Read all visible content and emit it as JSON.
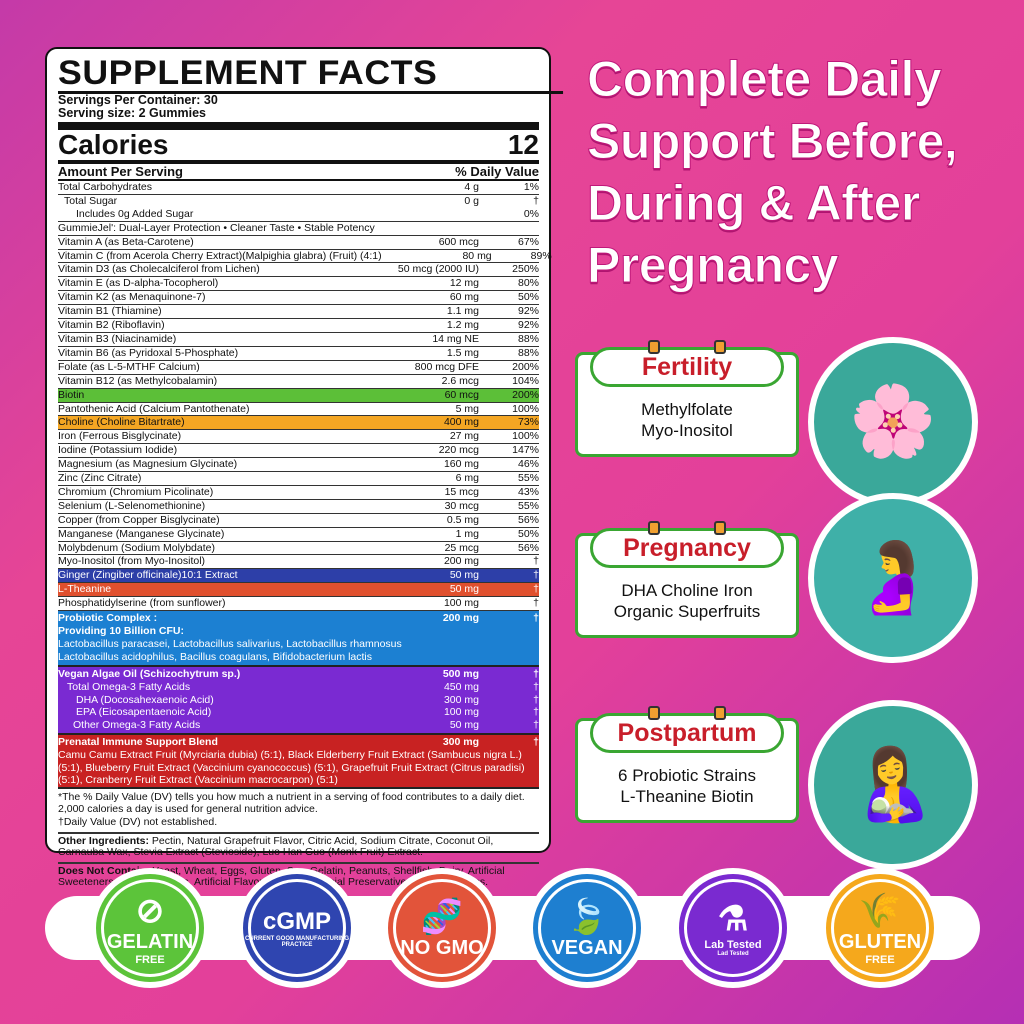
{
  "panel": {
    "title": "SUPPLEMENT FACTS",
    "servings_per_container": "Servings Per Container: 30",
    "serving_size": "Serving size: 2 Gummies",
    "calories_label": "Calories",
    "calories_value": "12",
    "amount_per_serving": "Amount Per Serving",
    "daily_value_header": "% Daily Value",
    "rows": [
      {
        "n": "Total Carbohydrates",
        "a": "4 g",
        "d": "1%"
      },
      {
        "n": "  Total Sugar",
        "a": "0 g",
        "d": "†",
        "nob": true
      },
      {
        "n": "      Includes 0g Added Sugar",
        "a": "",
        "d": "0%"
      },
      {
        "n": "GummieJel': Dual-Layer Protection • Cleaner Taste • Stable Potency",
        "a": "",
        "d": ""
      },
      {
        "n": "Vitamin A (as Beta-Carotene)",
        "a": "600 mcg",
        "d": "67%"
      },
      {
        "n": "Vitamin C (from Acerola Cherry Extract)(Malpighia glabra) (Fruit) (4:1)",
        "a": "80 mg",
        "d": "89%"
      },
      {
        "n": "Vitamin D3 (as Cholecalciferol from Lichen)",
        "a": "50 mcg (2000 IU)",
        "d": "250%"
      },
      {
        "n": "Vitamin E (as D-alpha-Tocopherol)",
        "a": "12 mg",
        "d": "80%"
      },
      {
        "n": "Vitamin K2 (as Menaquinone-7)",
        "a": "60 mg",
        "d": "50%"
      },
      {
        "n": "Vitamin B1 (Thiamine)",
        "a": "1.1 mg",
        "d": "92%"
      },
      {
        "n": "Vitamin B2 (Riboflavin)",
        "a": "1.2 mg",
        "d": "92%"
      },
      {
        "n": "Vitamin B3 (Niacinamide)",
        "a": "14 mg NE",
        "d": "88%"
      },
      {
        "n": "Vitamin B6 (as Pyridoxal 5-Phosphate)",
        "a": "1.5 mg",
        "d": "88%"
      },
      {
        "n": "Folate (as L-5-MTHF Calcium)",
        "a": "800 mcg DFE",
        "d": "200%"
      },
      {
        "n": "Vitamin B12 (as Methylcobalamin)",
        "a": "2.6 mcg",
        "d": "104%"
      },
      {
        "n": "Biotin",
        "a": "60 mcg",
        "d": "200%",
        "bg": "#5cbf38"
      },
      {
        "n": "Pantothenic Acid (Calcium Pantothenate)",
        "a": "5 mg",
        "d": "100%"
      },
      {
        "n": "Choline (Choline Bitartrate)",
        "a": "400 mg",
        "d": "73%",
        "bg": "#f4a623"
      },
      {
        "n": "Iron (Ferrous Bisglycinate)",
        "a": "27 mg",
        "d": "100%"
      },
      {
        "n": "Iodine (Potassium Iodide)",
        "a": "220 mcg",
        "d": "147%"
      },
      {
        "n": "Magnesium (as Magnesium Glycinate)",
        "a": "160 mg",
        "d": "46%"
      },
      {
        "n": "Zinc (Zinc Citrate)",
        "a": "6 mg",
        "d": "55%"
      },
      {
        "n": "Chromium (Chromium Picolinate)",
        "a": "15 mcg",
        "d": "43%"
      },
      {
        "n": "Selenium (L-Selenomethionine)",
        "a": "30 mcg",
        "d": "55%"
      },
      {
        "n": "Copper (from Copper Bisglycinate)",
        "a": "0.5 mg",
        "d": "56%"
      },
      {
        "n": "Manganese (Manganese Glycinate)",
        "a": "1 mg",
        "d": "50%"
      },
      {
        "n": "Molybdenum (Sodium Molybdate)",
        "a": "25 mcg",
        "d": "56%"
      },
      {
        "n": "Myo-Inositol (from Myo-Inositol)",
        "a": "200 mg",
        "d": "†"
      },
      {
        "n": "Ginger (Zingiber officinale)10:1 Extract",
        "a": "50 mg",
        "d": "†",
        "bg": "#2d3fa8",
        "fg": "#fff"
      },
      {
        "n": "L-Theanine",
        "a": "50 mg",
        "d": "†",
        "bg": "#e0502e",
        "fg": "#fff"
      },
      {
        "n": "Phosphatidylserine (from sunflower)",
        "a": "100 mg",
        "d": "†"
      }
    ],
    "blocks": [
      {
        "bg": "#1c80d2",
        "rows": [
          {
            "n": "Probiotic Complex :",
            "a": "200 mg",
            "d": "†",
            "b": true
          },
          {
            "n": "Providing 10 Billion CFU:",
            "a": "",
            "d": "",
            "b": true
          },
          {
            "n": "Lactobacillus paracasei, Lactobacillus salivarius, Lactobacillus rhamnosus",
            "a": "",
            "d": ""
          },
          {
            "n": "Lactobacillus acidophilus, Bacillus coagulans, Bifidobacterium lactis",
            "a": "",
            "d": ""
          }
        ]
      },
      {
        "bg": "#7a2ad2",
        "rows": [
          {
            "n": "Vegan Algae Oil (Schizochytrum sp.)",
            "a": "500 mg",
            "d": "†",
            "b": true
          },
          {
            "n": "   Total Omega-3 Fatty Acids",
            "a": "450 mg",
            "d": "†"
          },
          {
            "n": "      DHA (Docosahexaenoic Acid)",
            "a": "300 mg",
            "d": "†"
          },
          {
            "n": "      EPA (Eicosapentaenoic Acid)",
            "a": "100 mg",
            "d": "†"
          },
          {
            "n": "     Other Omega-3 Fatty Acids",
            "a": "50 mg",
            "d": "†"
          }
        ]
      },
      {
        "bg": "#c82222",
        "rows": [
          {
            "n": "Prenatal Immune Support Blend",
            "a": "300 mg",
            "d": "†",
            "b": true
          }
        ],
        "text": "Camu Camu Extract Fruit (Myrciaria dubia) (5:1), Black Elderberry Fruit Extract (Sambucus nigra L.) (5:1), Blueberry Fruit Extract (Vaccinium cyanococcus) (5:1), Grapefruit Fruit Extract (Citrus paradisi) (5:1), Cranberry Fruit Extract (Vaccinium macrocarpon) (5:1)"
      }
    ],
    "footnote_dv": "*The % Daily Value (DV) tells you how much a nutrient in a serving of food contributes to a daily diet. 2,000 calories a day is used for general nutrition advice.",
    "footnote_dagger": "†Daily Value (DV) not established.",
    "other_label": "Other Ingredients:",
    "other_text": " Pectin, Natural Grapefruit Flavor, Citric Acid, Sodium Citrate, Coconut Oil, Carnauba Wax, Stevia Extract (Stevioside), Luo Han Guo (Monk Fruit) Extract.",
    "dnc_label": "Does Not Contain:",
    "dnc_text": "  Yeast, Wheat, Eggs, Gluten, Soy, Gelatin, Peanuts, Shellfish, Dairy, Artificial Sweeteners, Artificial Colors, Artificial Flavors, Agave, Artificial Preservatives and Salicylates."
  },
  "headline": [
    "Complete Daily",
    "Support Before,",
    "During & After",
    "Pregnancy"
  ],
  "stages": [
    {
      "title": "Fertility",
      "l1": "Methylfolate",
      "l2": "Myo-Inositol",
      "icon": "woman-with-flowers-icon"
    },
    {
      "title": "Pregnancy",
      "l1": "DHA Choline Iron",
      "l2": "Organic Superfruits",
      "icon": "pregnant-woman-icon"
    },
    {
      "title": "Postpartum",
      "l1": "6 Probiotic Strains",
      "l2": "L-Theanine Biotin",
      "icon": "mother-with-baby-icon"
    }
  ],
  "badges": [
    {
      "label1": "GELATIN",
      "label2": "FREE",
      "color": "#5cc43a",
      "icon": "gelatin-free-icon"
    },
    {
      "label1": "cGMP",
      "label2": "CURRENT GOOD MANUFACTURING PRACTICE",
      "color": "#2f45b0",
      "icon": "cgmp-icon"
    },
    {
      "label1": "NO GMO",
      "label2": "",
      "color": "#e2543a",
      "icon": "no-gmo-dna-icon"
    },
    {
      "label1": "VEGAN",
      "label2": "",
      "color": "#1e7fd0",
      "icon": "vegan-leaf-icon"
    },
    {
      "label1": "Lab Tested",
      "label2": "Lad Tested",
      "color": "#7a2ad0",
      "icon": "lab-flask-icon"
    },
    {
      "label1": "GLUTEN",
      "label2": "FREE",
      "color": "#f5a81c",
      "icon": "gluten-free-wheat-icon"
    }
  ]
}
